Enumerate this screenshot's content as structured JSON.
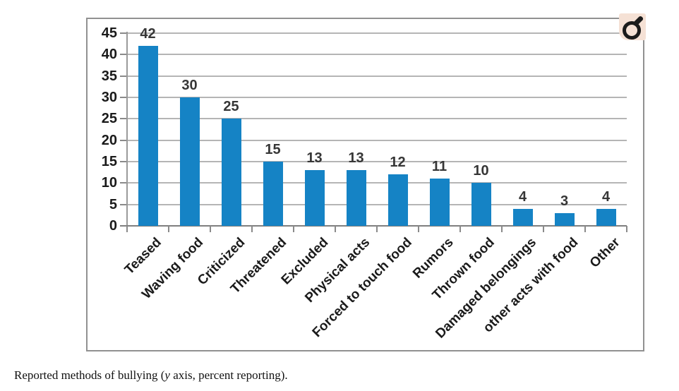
{
  "page": {
    "background": "#ffffff",
    "chart_border_color": "#919191"
  },
  "chart_data": {
    "type": "bar",
    "categories": [
      "Teased",
      "Waving food",
      "Criticized",
      "Threatened",
      "Excluded",
      "Physical acts",
      "Forced to touch food",
      "Rumors",
      "Thrown food",
      "Damaged belongings",
      "other acts with food",
      "Other"
    ],
    "values": [
      42,
      30,
      25,
      15,
      13,
      13,
      12,
      11,
      10,
      4,
      3,
      4
    ],
    "title": "",
    "xlabel": "",
    "ylabel": "",
    "ylim": [
      0,
      45
    ],
    "yticks": [
      0,
      5,
      10,
      15,
      20,
      25,
      30,
      35,
      40,
      45
    ],
    "grid": true,
    "legend": "none",
    "data_labels": true,
    "bar_color": "#1583c5",
    "gridline_color": "#b5b5b5",
    "axis_color": "#7f7f7f",
    "label_color": "#1a1a1a"
  },
  "corner_icon": {
    "name": "magnifier",
    "background": "#f5e1d5",
    "glyph_color": "#1b1b1b"
  },
  "caption": {
    "prefix": "Reported methods of bullying (",
    "italic_var": "y",
    "suffix": " axis, percent reporting)."
  }
}
